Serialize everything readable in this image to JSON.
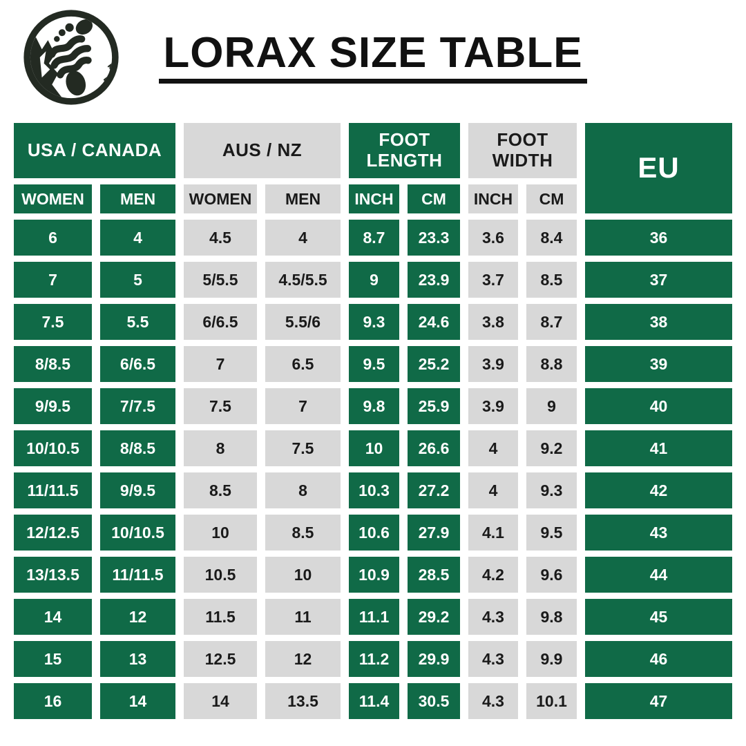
{
  "header": {
    "logo": "footprint-mountain-logo"
  },
  "colors": {
    "green": "#106A47",
    "gray": "#D8D8D8",
    "text_dark": "#1A1A1A",
    "white": "#FFFFFF",
    "logo_dark": "#232A22",
    "title_color": "#111111"
  },
  "chart_data": {
    "type": "table",
    "title": "LORAX SIZE TABLE",
    "legend_position": "none",
    "grid": false,
    "group_headers": [
      {
        "label": "USA / CANADA",
        "style": "green",
        "span": 2
      },
      {
        "label": "AUS / NZ",
        "style": "gray",
        "span": 2
      },
      {
        "label": "FOOT LENGTH",
        "style": "green",
        "span": 2
      },
      {
        "label": "FOOT WIDTH",
        "style": "gray",
        "span": 2
      },
      {
        "label": "EU",
        "style": "green",
        "span": 1,
        "row_span": 2
      }
    ],
    "sub_headers": [
      {
        "label": "WOMEN",
        "style": "green"
      },
      {
        "label": "MEN",
        "style": "green"
      },
      {
        "label": "WOMEN",
        "style": "gray"
      },
      {
        "label": "MEN",
        "style": "gray"
      },
      {
        "label": "INCH",
        "style": "green"
      },
      {
        "label": "CM",
        "style": "green"
      },
      {
        "label": "INCH",
        "style": "gray"
      },
      {
        "label": "CM",
        "style": "gray"
      }
    ],
    "columns": [
      "USA/CANADA WOMEN",
      "USA/CANADA MEN",
      "AUS/NZ WOMEN",
      "AUS/NZ MEN",
      "FOOT LENGTH INCH",
      "FOOT LENGTH CM",
      "FOOT WIDTH INCH",
      "FOOT WIDTH CM",
      "EU"
    ],
    "column_styles": [
      "green",
      "green",
      "gray",
      "gray",
      "green",
      "green",
      "gray",
      "gray",
      "green"
    ],
    "rows": [
      [
        "6",
        "4",
        "4.5",
        "4",
        "8.7",
        "23.3",
        "3.6",
        "8.4",
        "36"
      ],
      [
        "7",
        "5",
        "5/5.5",
        "4.5/5.5",
        "9",
        "23.9",
        "3.7",
        "8.5",
        "37"
      ],
      [
        "7.5",
        "5.5",
        "6/6.5",
        "5.5/6",
        "9.3",
        "24.6",
        "3.8",
        "8.7",
        "38"
      ],
      [
        "8/8.5",
        "6/6.5",
        "7",
        "6.5",
        "9.5",
        "25.2",
        "3.9",
        "8.8",
        "39"
      ],
      [
        "9/9.5",
        "7/7.5",
        "7.5",
        "7",
        "9.8",
        "25.9",
        "3.9",
        "9",
        "40"
      ],
      [
        "10/10.5",
        "8/8.5",
        "8",
        "7.5",
        "10",
        "26.6",
        "4",
        "9.2",
        "41"
      ],
      [
        "11/11.5",
        "9/9.5",
        "8.5",
        "8",
        "10.3",
        "27.2",
        "4",
        "9.3",
        "42"
      ],
      [
        "12/12.5",
        "10/10.5",
        "10",
        "8.5",
        "10.6",
        "27.9",
        "4.1",
        "9.5",
        "43"
      ],
      [
        "13/13.5",
        "11/11.5",
        "10.5",
        "10",
        "10.9",
        "28.5",
        "4.2",
        "9.6",
        "44"
      ],
      [
        "14",
        "12",
        "11.5",
        "11",
        "11.1",
        "29.2",
        "4.3",
        "9.8",
        "45"
      ],
      [
        "15",
        "13",
        "12.5",
        "12",
        "11.2",
        "29.9",
        "4.3",
        "9.9",
        "46"
      ],
      [
        "16",
        "14",
        "14",
        "13.5",
        "11.4",
        "30.5",
        "4.3",
        "10.1",
        "47"
      ]
    ]
  }
}
